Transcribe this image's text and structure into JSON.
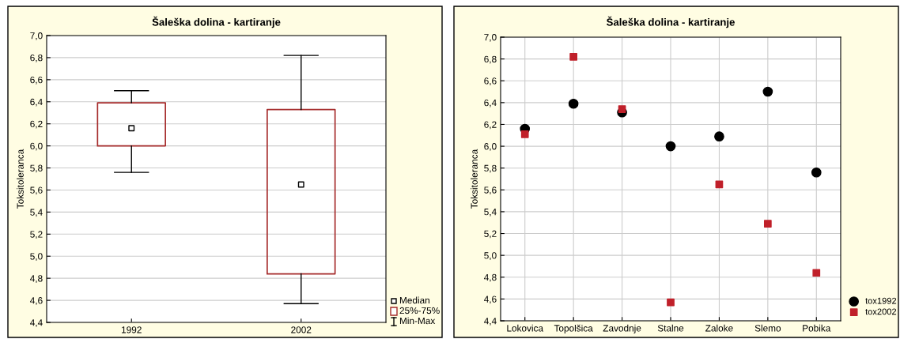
{
  "chart_data": [
    {
      "type": "box",
      "title": "Šaleška dolina - kartiranje",
      "ylabel": "Toksitoleranca",
      "categories": [
        "1992",
        "2002"
      ],
      "boxes": [
        {
          "low": 5.76,
          "q1": 6.0,
          "median": 6.16,
          "q3": 6.39,
          "high": 6.5
        },
        {
          "low": 4.57,
          "q1": 4.84,
          "median": 5.65,
          "q3": 6.33,
          "high": 6.82
        }
      ],
      "color": "#a52a2a",
      "ylim": [
        4.4,
        7.0
      ],
      "yticks": [
        {
          "value": 4.4,
          "label": "4,4"
        },
        {
          "value": 4.6,
          "label": "4,6"
        },
        {
          "value": 4.8,
          "label": "4,8"
        },
        {
          "value": 5.0,
          "label": "5,0"
        },
        {
          "value": 5.2,
          "label": "5,2"
        },
        {
          "value": 5.4,
          "label": "5,4"
        },
        {
          "value": 5.6,
          "label": "5,6"
        },
        {
          "value": 5.8,
          "label": "5,8"
        },
        {
          "value": 6.0,
          "label": "6,0"
        },
        {
          "value": 6.2,
          "label": "6,2"
        },
        {
          "value": 6.4,
          "label": "6,4"
        },
        {
          "value": 6.6,
          "label": "6,6"
        },
        {
          "value": 6.8,
          "label": "6,8"
        },
        {
          "value": 7.0,
          "label": "7,0"
        }
      ],
      "grid": "y",
      "annotations": [
        "Median",
        "25%-75%",
        "Min-Max"
      ]
    },
    {
      "type": "scatter",
      "title": "Šaleška dolina - kartiranje",
      "ylabel": "Toksitoleranca",
      "categories": [
        "Lokovica",
        "Topolšica",
        "Zavodnje",
        "Stalne",
        "Zaloke",
        "Slemo",
        "Pobika"
      ],
      "series": [
        {
          "name": "tox1992",
          "color": "#000000",
          "marker": "circle",
          "values": [
            6.16,
            6.39,
            6.31,
            6.0,
            6.09,
            6.5,
            5.76
          ]
        },
        {
          "name": "tox2002",
          "color": "#c0202a",
          "marker": "square",
          "values": [
            6.11,
            6.82,
            6.34,
            4.57,
            5.65,
            5.29,
            4.84
          ]
        }
      ],
      "ylim": [
        4.4,
        7.0
      ],
      "yticks": [
        {
          "value": 4.4,
          "label": "4,4"
        },
        {
          "value": 4.6,
          "label": "4,6"
        },
        {
          "value": 4.8,
          "label": "4,8"
        },
        {
          "value": 5.0,
          "label": "5,0"
        },
        {
          "value": 5.2,
          "label": "5,2"
        },
        {
          "value": 5.4,
          "label": "5,4"
        },
        {
          "value": 5.6,
          "label": "5,6"
        },
        {
          "value": 5.8,
          "label": "5,8"
        },
        {
          "value": 6.0,
          "label": "6,0"
        },
        {
          "value": 6.2,
          "label": "6,2"
        },
        {
          "value": 6.4,
          "label": "6,4"
        },
        {
          "value": 6.6,
          "label": "6,6"
        },
        {
          "value": 6.8,
          "label": "6,8"
        },
        {
          "value": 7.0,
          "label": "7,0"
        }
      ],
      "grid": true,
      "legend": "bottom right"
    }
  ]
}
